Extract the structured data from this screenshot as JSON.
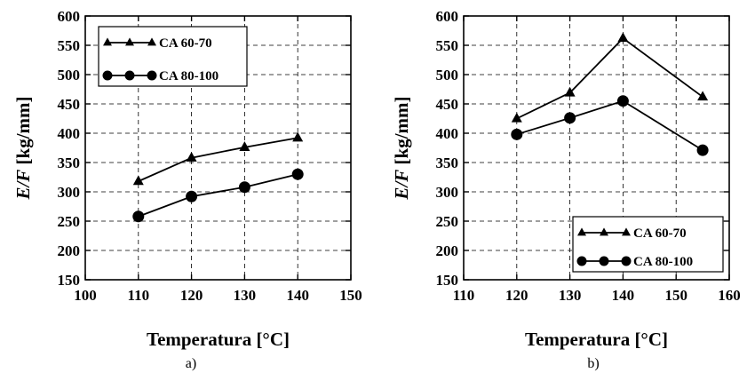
{
  "chart_data": [
    {
      "type": "line",
      "panel_label": "a)",
      "xlabel": "Temperatura [°C]",
      "ylabel_italic": "E/F",
      "ylabel_unit": " [kg/mm]",
      "xlim": [
        100,
        150
      ],
      "ylim": [
        150,
        600
      ],
      "xticks": [
        100,
        110,
        120,
        130,
        140,
        150
      ],
      "yticks": [
        150,
        200,
        250,
        300,
        350,
        400,
        450,
        500,
        550,
        600
      ],
      "grid": true,
      "legend_position": "top-left",
      "series": [
        {
          "name": "CA 60-70",
          "marker": "triangle",
          "x": [
            110,
            120,
            130,
            140
          ],
          "y": [
            318,
            358,
            376,
            392
          ]
        },
        {
          "name": "CA 80-100",
          "marker": "circle",
          "x": [
            110,
            120,
            130,
            140
          ],
          "y": [
            258,
            292,
            308,
            330
          ]
        }
      ]
    },
    {
      "type": "line",
      "panel_label": "b)",
      "xlabel": "Temperatura [°C]",
      "ylabel_italic": "E/F",
      "ylabel_unit": " [kg/mm]",
      "xlim": [
        110,
        160
      ],
      "ylim": [
        150,
        600
      ],
      "xticks": [
        110,
        120,
        130,
        140,
        150,
        160
      ],
      "yticks": [
        150,
        200,
        250,
        300,
        350,
        400,
        450,
        500,
        550,
        600
      ],
      "grid": true,
      "legend_position": "bottom-right",
      "series": [
        {
          "name": "CA 60-70",
          "marker": "triangle",
          "x": [
            120,
            130,
            140,
            155
          ],
          "y": [
            425,
            469,
            562,
            462
          ]
        },
        {
          "name": "CA 80-100",
          "marker": "circle",
          "x": [
            120,
            130,
            140,
            155
          ],
          "y": [
            398,
            426,
            455,
            371
          ]
        }
      ]
    }
  ]
}
